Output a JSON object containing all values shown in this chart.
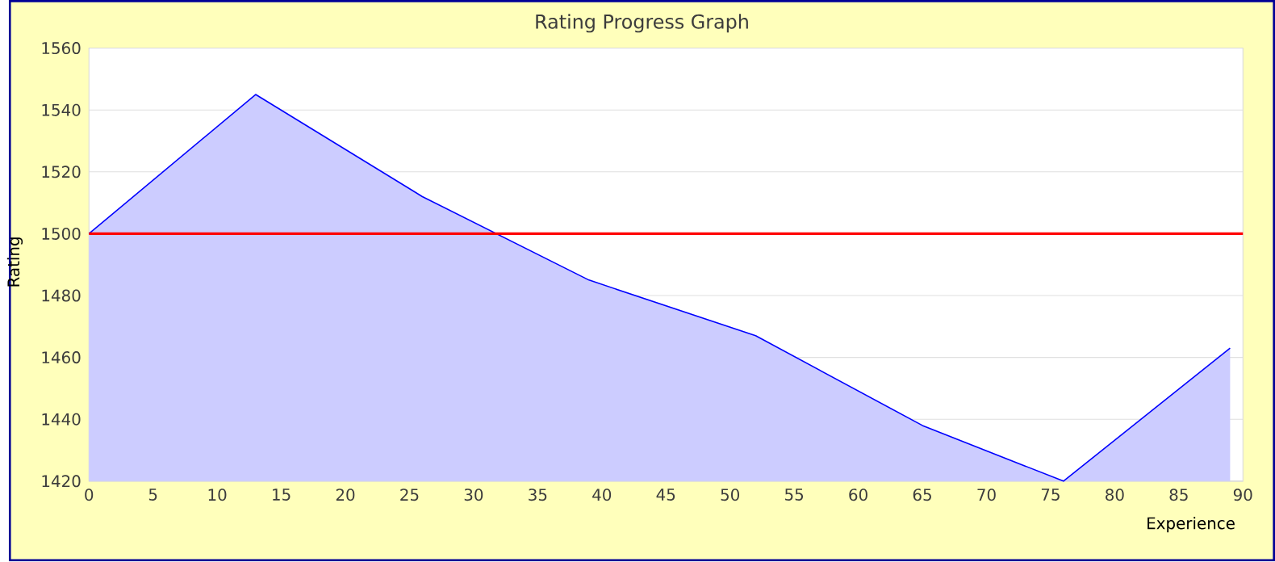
{
  "chart_data": {
    "type": "area",
    "title": "Rating Progress Graph",
    "xlabel": "Experience",
    "ylabel": "Rating",
    "x": [
      0,
      13,
      26,
      39,
      52,
      65,
      76,
      89
    ],
    "series": [
      {
        "color": "#0000ff",
        "values": [
          1500,
          1545,
          1512,
          1485,
          1467,
          1438,
          1420,
          1463
        ]
      }
    ],
    "xlim": [
      0,
      90
    ],
    "ylim": [
      1420,
      1560
    ],
    "xticks": [
      0,
      5,
      10,
      15,
      20,
      25,
      30,
      35,
      40,
      45,
      50,
      55,
      60,
      65,
      70,
      75,
      80,
      85,
      90
    ],
    "yticks": [
      1420,
      1440,
      1460,
      1480,
      1500,
      1520,
      1540,
      1560
    ],
    "grid": "y",
    "ref_lines": [
      {
        "axis": "y",
        "value": 1500,
        "color": "#ff0000"
      }
    ]
  }
}
